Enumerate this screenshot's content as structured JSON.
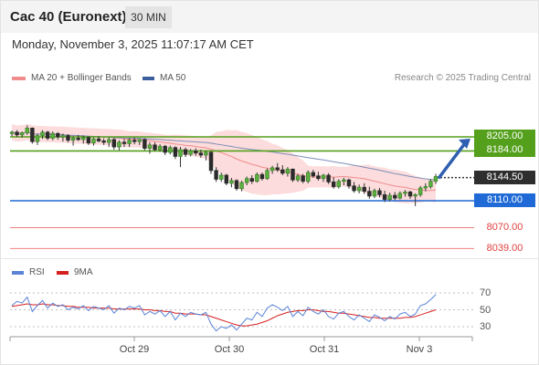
{
  "header": {
    "title": "Cac 40 (Euronext)",
    "timeframe": "30 MIN"
  },
  "timestamp": "Monday, November 3, 2025 11:07:17 AM CET",
  "legend": {
    "bollinger": {
      "label": "MA 20 + Bollinger Bands",
      "color": "#f08c8c"
    },
    "ma50": {
      "label": "MA 50",
      "color": "#3a5f9c"
    }
  },
  "credit": "Research © 2025 Trading Central",
  "rsi_legend": {
    "rsi": {
      "label": "RSI",
      "color": "#5b84d6"
    },
    "ma9": {
      "label": "9MA",
      "color": "#d62020"
    }
  },
  "levels": [
    {
      "label": "8205.00",
      "value": 8205,
      "kind": "resistance",
      "color": "#54a01c"
    },
    {
      "label": "8184.00",
      "value": 8184,
      "kind": "resistance",
      "color": "#54a01c"
    },
    {
      "label": "8144.50",
      "value": 8144.5,
      "kind": "current",
      "color": "#2e2e2e"
    },
    {
      "label": "8110.00",
      "value": 8110,
      "kind": "pivot",
      "color": "#1f6ad6"
    },
    {
      "label": "8070.00",
      "value": 8070,
      "kind": "support",
      "color": "#e04040"
    },
    {
      "label": "8039.00",
      "value": 8039,
      "kind": "support",
      "color": "#e04040"
    }
  ],
  "rsi_ticks": [
    "70",
    "50",
    "30"
  ],
  "chart_data": {
    "type": "candlestick",
    "x_labels": [
      "Oct 29",
      "Oct 30",
      "Oct 31",
      "Nov 3"
    ],
    "ylim": [
      8020,
      8240
    ],
    "candles": [
      {
        "o": 8210,
        "h": 8214,
        "l": 8206,
        "c": 8212
      },
      {
        "o": 8212,
        "h": 8215,
        "l": 8205,
        "c": 8208
      },
      {
        "o": 8208,
        "h": 8213,
        "l": 8204,
        "c": 8211
      },
      {
        "o": 8211,
        "h": 8222,
        "l": 8208,
        "c": 8218
      },
      {
        "o": 8218,
        "h": 8219,
        "l": 8195,
        "c": 8198
      },
      {
        "o": 8198,
        "h": 8210,
        "l": 8193,
        "c": 8207
      },
      {
        "o": 8207,
        "h": 8215,
        "l": 8202,
        "c": 8212
      },
      {
        "o": 8212,
        "h": 8214,
        "l": 8200,
        "c": 8203
      },
      {
        "o": 8203,
        "h": 8213,
        "l": 8200,
        "c": 8210
      },
      {
        "o": 8210,
        "h": 8212,
        "l": 8201,
        "c": 8205
      },
      {
        "o": 8205,
        "h": 8210,
        "l": 8198,
        "c": 8207
      },
      {
        "o": 8207,
        "h": 8209,
        "l": 8197,
        "c": 8200
      },
      {
        "o": 8200,
        "h": 8206,
        "l": 8192,
        "c": 8203
      },
      {
        "o": 8203,
        "h": 8208,
        "l": 8199,
        "c": 8201
      },
      {
        "o": 8201,
        "h": 8207,
        "l": 8195,
        "c": 8204
      },
      {
        "o": 8204,
        "h": 8206,
        "l": 8193,
        "c": 8196
      },
      {
        "o": 8196,
        "h": 8204,
        "l": 8192,
        "c": 8202
      },
      {
        "o": 8202,
        "h": 8206,
        "l": 8197,
        "c": 8199
      },
      {
        "o": 8199,
        "h": 8203,
        "l": 8193,
        "c": 8197
      },
      {
        "o": 8197,
        "h": 8204,
        "l": 8190,
        "c": 8201
      },
      {
        "o": 8201,
        "h": 8203,
        "l": 8186,
        "c": 8190
      },
      {
        "o": 8190,
        "h": 8200,
        "l": 8185,
        "c": 8197
      },
      {
        "o": 8197,
        "h": 8202,
        "l": 8190,
        "c": 8195
      },
      {
        "o": 8195,
        "h": 8203,
        "l": 8190,
        "c": 8200
      },
      {
        "o": 8200,
        "h": 8204,
        "l": 8194,
        "c": 8198
      },
      {
        "o": 8198,
        "h": 8202,
        "l": 8193,
        "c": 8201
      },
      {
        "o": 8201,
        "h": 8203,
        "l": 8185,
        "c": 8188
      },
      {
        "o": 8188,
        "h": 8197,
        "l": 8180,
        "c": 8193
      },
      {
        "o": 8193,
        "h": 8197,
        "l": 8184,
        "c": 8186
      },
      {
        "o": 8186,
        "h": 8194,
        "l": 8183,
        "c": 8191
      },
      {
        "o": 8191,
        "h": 8193,
        "l": 8178,
        "c": 8182
      },
      {
        "o": 8182,
        "h": 8192,
        "l": 8179,
        "c": 8189
      },
      {
        "o": 8189,
        "h": 8191,
        "l": 8172,
        "c": 8176
      },
      {
        "o": 8176,
        "h": 8190,
        "l": 8160,
        "c": 8186
      },
      {
        "o": 8186,
        "h": 8189,
        "l": 8175,
        "c": 8179
      },
      {
        "o": 8179,
        "h": 8187,
        "l": 8176,
        "c": 8184
      },
      {
        "o": 8184,
        "h": 8188,
        "l": 8177,
        "c": 8181
      },
      {
        "o": 8181,
        "h": 8186,
        "l": 8174,
        "c": 8178
      },
      {
        "o": 8178,
        "h": 8184,
        "l": 8170,
        "c": 8182
      },
      {
        "o": 8182,
        "h": 8184,
        "l": 8150,
        "c": 8155
      },
      {
        "o": 8155,
        "h": 8160,
        "l": 8138,
        "c": 8142
      },
      {
        "o": 8142,
        "h": 8152,
        "l": 8138,
        "c": 8148
      },
      {
        "o": 8148,
        "h": 8150,
        "l": 8133,
        "c": 8136
      },
      {
        "o": 8136,
        "h": 8144,
        "l": 8130,
        "c": 8140
      },
      {
        "o": 8140,
        "h": 8142,
        "l": 8125,
        "c": 8128
      },
      {
        "o": 8128,
        "h": 8140,
        "l": 8124,
        "c": 8137
      },
      {
        "o": 8137,
        "h": 8146,
        "l": 8133,
        "c": 8143
      },
      {
        "o": 8143,
        "h": 8148,
        "l": 8135,
        "c": 8139
      },
      {
        "o": 8139,
        "h": 8152,
        "l": 8137,
        "c": 8149
      },
      {
        "o": 8149,
        "h": 8152,
        "l": 8140,
        "c": 8143
      },
      {
        "o": 8143,
        "h": 8158,
        "l": 8141,
        "c": 8155
      },
      {
        "o": 8155,
        "h": 8162,
        "l": 8150,
        "c": 8159
      },
      {
        "o": 8159,
        "h": 8166,
        "l": 8153,
        "c": 8156
      },
      {
        "o": 8156,
        "h": 8163,
        "l": 8148,
        "c": 8151
      },
      {
        "o": 8151,
        "h": 8160,
        "l": 8146,
        "c": 8157
      },
      {
        "o": 8157,
        "h": 8158,
        "l": 8138,
        "c": 8141
      },
      {
        "o": 8141,
        "h": 8150,
        "l": 8138,
        "c": 8147
      },
      {
        "o": 8147,
        "h": 8150,
        "l": 8136,
        "c": 8139
      },
      {
        "o": 8139,
        "h": 8155,
        "l": 8136,
        "c": 8152
      },
      {
        "o": 8152,
        "h": 8156,
        "l": 8144,
        "c": 8147
      },
      {
        "o": 8147,
        "h": 8153,
        "l": 8140,
        "c": 8143
      },
      {
        "o": 8143,
        "h": 8150,
        "l": 8138,
        "c": 8148
      },
      {
        "o": 8148,
        "h": 8151,
        "l": 8135,
        "c": 8138
      },
      {
        "o": 8138,
        "h": 8145,
        "l": 8128,
        "c": 8131
      },
      {
        "o": 8131,
        "h": 8142,
        "l": 8128,
        "c": 8139
      },
      {
        "o": 8139,
        "h": 8144,
        "l": 8133,
        "c": 8141
      },
      {
        "o": 8141,
        "h": 8143,
        "l": 8128,
        "c": 8132
      },
      {
        "o": 8132,
        "h": 8138,
        "l": 8122,
        "c": 8125
      },
      {
        "o": 8125,
        "h": 8134,
        "l": 8121,
        "c": 8130
      },
      {
        "o": 8130,
        "h": 8136,
        "l": 8120,
        "c": 8124
      },
      {
        "o": 8124,
        "h": 8131,
        "l": 8113,
        "c": 8117
      },
      {
        "o": 8117,
        "h": 8128,
        "l": 8114,
        "c": 8125
      },
      {
        "o": 8125,
        "h": 8129,
        "l": 8115,
        "c": 8119
      },
      {
        "o": 8119,
        "h": 8125,
        "l": 8108,
        "c": 8112
      },
      {
        "o": 8112,
        "h": 8122,
        "l": 8109,
        "c": 8118
      },
      {
        "o": 8118,
        "h": 8123,
        "l": 8111,
        "c": 8114
      },
      {
        "o": 8114,
        "h": 8124,
        "l": 8112,
        "c": 8121
      },
      {
        "o": 8121,
        "h": 8126,
        "l": 8116,
        "c": 8123
      },
      {
        "o": 8123,
        "h": 8125,
        "l": 8113,
        "c": 8117
      },
      {
        "o": 8117,
        "h": 8121,
        "l": 8102,
        "c": 8119
      },
      {
        "o": 8119,
        "h": 8132,
        "l": 8116,
        "c": 8129
      },
      {
        "o": 8129,
        "h": 8136,
        "l": 8124,
        "c": 8131
      },
      {
        "o": 8131,
        "h": 8142,
        "l": 8128,
        "c": 8139
      },
      {
        "o": 8139,
        "h": 8150,
        "l": 8135,
        "c": 8146
      }
    ],
    "series": [
      {
        "name": "RSI",
        "values": [
          55,
          60,
          58,
          65,
          48,
          55,
          61,
          52,
          58,
          54,
          56,
          50,
          53,
          51,
          55,
          49,
          54,
          52,
          50,
          55,
          46,
          52,
          50,
          54,
          52,
          55,
          44,
          48,
          45,
          49,
          42,
          48,
          38,
          46,
          42,
          47,
          45,
          44,
          47,
          33,
          25,
          30,
          28,
          32,
          26,
          33,
          40,
          38,
          47,
          42,
          52,
          56,
          53,
          49,
          54,
          42,
          48,
          43,
          53,
          48,
          45,
          50,
          42,
          39,
          46,
          48,
          42,
          38,
          44,
          40,
          36,
          44,
          41,
          37,
          42,
          39,
          45,
          47,
          42,
          45,
          55,
          57,
          62,
          68
        ]
      },
      {
        "name": "9MA",
        "values": [
          54,
          55,
          56,
          57,
          56,
          56,
          57,
          56,
          56,
          55,
          55,
          54,
          54,
          53,
          53,
          53,
          52,
          52,
          52,
          52,
          51,
          51,
          51,
          51,
          51,
          51,
          50,
          50,
          49,
          49,
          48,
          48,
          46,
          46,
          45,
          45,
          45,
          44,
          44,
          42,
          40,
          38,
          36,
          34,
          32,
          31,
          31,
          32,
          33,
          35,
          37,
          40,
          43,
          45,
          47,
          48,
          49,
          49,
          50,
          50,
          49,
          48,
          48,
          47,
          46,
          46,
          45,
          44,
          43,
          42,
          41,
          41,
          40,
          40,
          40,
          40,
          40,
          41,
          41,
          42,
          44,
          46,
          48,
          50
        ]
      }
    ],
    "rsi_ylim": [
      15,
      80
    ]
  }
}
